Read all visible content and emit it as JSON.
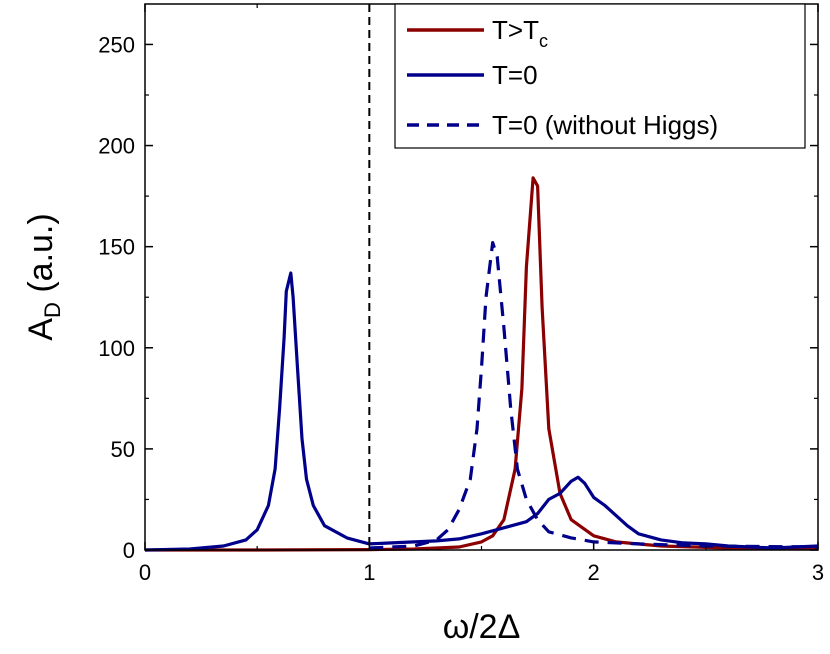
{
  "chart_data": {
    "type": "line",
    "xlabel": "ω/2Δ",
    "ylabel_main": "A",
    "ylabel_sub": "D",
    "ylabel_rest": " (a.u.)",
    "xlim": [
      0,
      3
    ],
    "ylim": [
      0,
      270
    ],
    "x_ticks": [
      {
        "value": 0,
        "label": "0"
      },
      {
        "value": 1,
        "label": "1"
      },
      {
        "value": 2,
        "label": "2"
      },
      {
        "value": 3,
        "label": "3"
      }
    ],
    "y_ticks": [
      {
        "value": 0,
        "label": "0"
      },
      {
        "value": 50,
        "label": "50"
      },
      {
        "value": 100,
        "label": "100"
      },
      {
        "value": 150,
        "label": "150"
      },
      {
        "value": 200,
        "label": "200"
      },
      {
        "value": 250,
        "label": "250"
      }
    ],
    "grid": false,
    "legend_position": "top-right",
    "reference_line": {
      "x": 1,
      "color": "#000000",
      "style": "dashed"
    },
    "series": [
      {
        "name": "T>T",
        "name_sub": "c",
        "color": "#8b0000",
        "style": "solid",
        "points": [
          [
            0,
            0
          ],
          [
            0.5,
            0
          ],
          [
            1.0,
            0.2
          ],
          [
            1.2,
            0.5
          ],
          [
            1.4,
            1.5
          ],
          [
            1.5,
            4
          ],
          [
            1.55,
            7
          ],
          [
            1.6,
            15
          ],
          [
            1.65,
            40
          ],
          [
            1.68,
            80
          ],
          [
            1.7,
            140
          ],
          [
            1.73,
            184
          ],
          [
            1.75,
            180
          ],
          [
            1.77,
            120
          ],
          [
            1.8,
            60
          ],
          [
            1.85,
            28
          ],
          [
            1.9,
            15
          ],
          [
            2.0,
            7
          ],
          [
            2.1,
            4
          ],
          [
            2.3,
            2
          ],
          [
            2.6,
            1
          ],
          [
            3.0,
            0.5
          ]
        ]
      },
      {
        "name": "T=0",
        "color": "#00008b",
        "style": "solid",
        "points": [
          [
            0,
            0
          ],
          [
            0.2,
            0.5
          ],
          [
            0.35,
            2
          ],
          [
            0.45,
            5
          ],
          [
            0.5,
            10
          ],
          [
            0.55,
            22
          ],
          [
            0.58,
            40
          ],
          [
            0.6,
            70
          ],
          [
            0.62,
            105
          ],
          [
            0.63,
            128
          ],
          [
            0.65,
            137
          ],
          [
            0.66,
            125
          ],
          [
            0.68,
            90
          ],
          [
            0.7,
            55
          ],
          [
            0.72,
            35
          ],
          [
            0.75,
            22
          ],
          [
            0.8,
            12
          ],
          [
            0.9,
            6
          ],
          [
            1.0,
            3
          ],
          [
            1.1,
            3.5
          ],
          [
            1.2,
            4
          ],
          [
            1.3,
            4.5
          ],
          [
            1.4,
            5.5
          ],
          [
            1.5,
            8
          ],
          [
            1.6,
            11
          ],
          [
            1.7,
            14
          ],
          [
            1.75,
            18
          ],
          [
            1.8,
            25
          ],
          [
            1.85,
            28
          ],
          [
            1.9,
            34
          ],
          [
            1.93,
            36
          ],
          [
            1.96,
            33
          ],
          [
            2.0,
            26
          ],
          [
            2.05,
            22
          ],
          [
            2.1,
            17
          ],
          [
            2.15,
            12
          ],
          [
            2.2,
            8
          ],
          [
            2.3,
            5
          ],
          [
            2.4,
            3.5
          ],
          [
            2.5,
            3
          ],
          [
            2.6,
            2
          ],
          [
            2.7,
            1.5
          ],
          [
            2.8,
            1
          ],
          [
            2.9,
            1.5
          ],
          [
            3.0,
            2
          ]
        ]
      },
      {
        "name": "T=0 (without Higgs)",
        "color": "#00008b",
        "style": "dashed",
        "points": [
          [
            1.0,
            1
          ],
          [
            1.2,
            2
          ],
          [
            1.3,
            5
          ],
          [
            1.35,
            10
          ],
          [
            1.4,
            20
          ],
          [
            1.45,
            35
          ],
          [
            1.48,
            60
          ],
          [
            1.5,
            90
          ],
          [
            1.52,
            125
          ],
          [
            1.55,
            152
          ],
          [
            1.57,
            145
          ],
          [
            1.6,
            110
          ],
          [
            1.63,
            70
          ],
          [
            1.66,
            40
          ],
          [
            1.7,
            25
          ],
          [
            1.75,
            15
          ],
          [
            1.8,
            9
          ],
          [
            1.9,
            6
          ],
          [
            2.0,
            4
          ],
          [
            2.2,
            3
          ],
          [
            2.5,
            2
          ],
          [
            3.0,
            1.5
          ]
        ]
      }
    ]
  }
}
